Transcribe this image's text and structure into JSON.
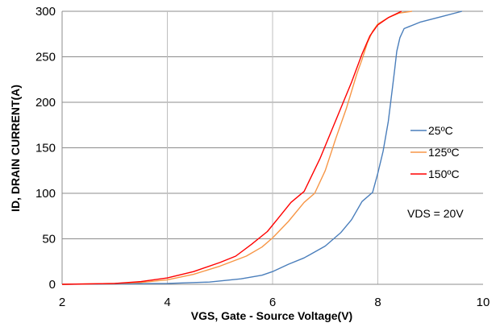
{
  "chart_data": {
    "type": "line",
    "title": "",
    "xlabel": "VGS, Gate - Source Voltage(V)",
    "ylabel": "ID, DRAIN CURRENT(A)",
    "xlim": [
      2,
      10
    ],
    "ylim": [
      0,
      300
    ],
    "xticks": [
      2,
      4,
      6,
      8,
      10
    ],
    "yticks": [
      0,
      50,
      100,
      150,
      200,
      250,
      300
    ],
    "grid": true,
    "legend_position": "right",
    "annotation": "VDS = 20V",
    "series": [
      {
        "name": "25ºC",
        "color": "#4a7ebb",
        "points": [
          [
            2,
            0
          ],
          [
            3,
            0.5
          ],
          [
            4,
            1
          ],
          [
            4.8,
            2.5
          ],
          [
            5.4,
            6
          ],
          [
            5.8,
            10
          ],
          [
            6,
            14
          ],
          [
            6.3,
            22
          ],
          [
            6.6,
            29
          ],
          [
            7,
            42
          ],
          [
            7.3,
            57
          ],
          [
            7.5,
            71
          ],
          [
            7.7,
            91
          ],
          [
            7.9,
            101
          ],
          [
            8,
            122
          ],
          [
            8.1,
            146
          ],
          [
            8.2,
            179
          ],
          [
            8.28,
            217
          ],
          [
            8.32,
            236
          ],
          [
            8.36,
            256
          ],
          [
            8.42,
            271
          ],
          [
            8.5,
            281
          ],
          [
            8.8,
            288
          ],
          [
            9.2,
            294
          ],
          [
            9.6,
            300
          ]
        ]
      },
      {
        "name": "125ºC",
        "color": "#f79646",
        "points": [
          [
            2,
            0
          ],
          [
            3,
            1
          ],
          [
            3.5,
            2
          ],
          [
            4,
            5
          ],
          [
            4.5,
            11
          ],
          [
            5,
            20
          ],
          [
            5.5,
            31
          ],
          [
            5.8,
            41
          ],
          [
            6,
            51
          ],
          [
            6.3,
            69
          ],
          [
            6.6,
            90
          ],
          [
            6.8,
            100
          ],
          [
            7,
            125
          ],
          [
            7.2,
            160
          ],
          [
            7.4,
            193
          ],
          [
            7.6,
            231
          ],
          [
            7.7,
            247
          ],
          [
            7.8,
            265
          ],
          [
            7.9,
            278
          ],
          [
            8,
            286
          ],
          [
            8.2,
            293
          ],
          [
            8.4,
            298
          ],
          [
            8.65,
            300
          ]
        ]
      },
      {
        "name": "150ºC",
        "color": "#ff0000",
        "points": [
          [
            2,
            0
          ],
          [
            3,
            1
          ],
          [
            3.5,
            3
          ],
          [
            4,
            7
          ],
          [
            4.5,
            14
          ],
          [
            5,
            24
          ],
          [
            5.3,
            31
          ],
          [
            5.6,
            44
          ],
          [
            5.9,
            58
          ],
          [
            6.1,
            72
          ],
          [
            6.35,
            90
          ],
          [
            6.6,
            102
          ],
          [
            6.9,
            138
          ],
          [
            7.2,
            180
          ],
          [
            7.5,
            222
          ],
          [
            7.7,
            253
          ],
          [
            7.85,
            273
          ],
          [
            8,
            285
          ],
          [
            8.2,
            293
          ],
          [
            8.45,
            300
          ]
        ]
      }
    ]
  }
}
